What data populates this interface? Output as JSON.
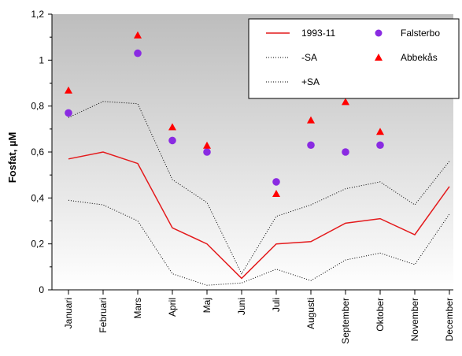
{
  "chart_data": {
    "type": "line",
    "title": "",
    "xlabel": "",
    "ylabel": "Fosfat, µM",
    "ylim": [
      0,
      1.2
    ],
    "y_ticks": [
      "0",
      "0,2",
      "0,4",
      "0,6",
      "0,8",
      "1",
      "1,2"
    ],
    "y_tick_values": [
      0,
      0.2,
      0.4,
      0.6,
      0.8,
      1.0,
      1.2
    ],
    "categories": [
      "Januari",
      "Februari",
      "Mars",
      "April",
      "Maj",
      "Juni",
      "Juli",
      "Augusti",
      "September",
      "Oktober",
      "November",
      "December"
    ],
    "background": "gray-gradient",
    "legend_position": "top-right",
    "series": [
      {
        "name": "1993-11",
        "kind": "line",
        "style": "solid",
        "color": "#e41a1c",
        "values": [
          0.57,
          0.6,
          0.55,
          0.27,
          0.2,
          0.05,
          0.2,
          0.21,
          0.29,
          0.31,
          0.24,
          0.45
        ]
      },
      {
        "name": "-SA",
        "kind": "line",
        "style": "dotted",
        "color": "#000000",
        "values": [
          0.39,
          0.37,
          0.3,
          0.07,
          0.02,
          0.03,
          0.09,
          0.04,
          0.13,
          0.16,
          0.11,
          0.33
        ]
      },
      {
        "name": "+SA",
        "kind": "line",
        "style": "dotted",
        "color": "#000000",
        "values": [
          0.75,
          0.82,
          0.81,
          0.48,
          0.38,
          0.07,
          0.32,
          0.37,
          0.44,
          0.47,
          0.37,
          0.56
        ]
      },
      {
        "name": "Falsterbo",
        "kind": "scatter",
        "marker": "circle",
        "color": "#8a2be2",
        "values": [
          0.77,
          null,
          1.03,
          0.65,
          0.6,
          null,
          0.47,
          0.63,
          0.6,
          0.63,
          null,
          null
        ]
      },
      {
        "name": "Abbekås",
        "kind": "scatter",
        "marker": "triangle",
        "color": "#ff0000",
        "values": [
          0.87,
          null,
          1.11,
          0.71,
          0.63,
          null,
          0.42,
          0.74,
          0.82,
          0.69,
          null,
          null
        ]
      }
    ]
  }
}
